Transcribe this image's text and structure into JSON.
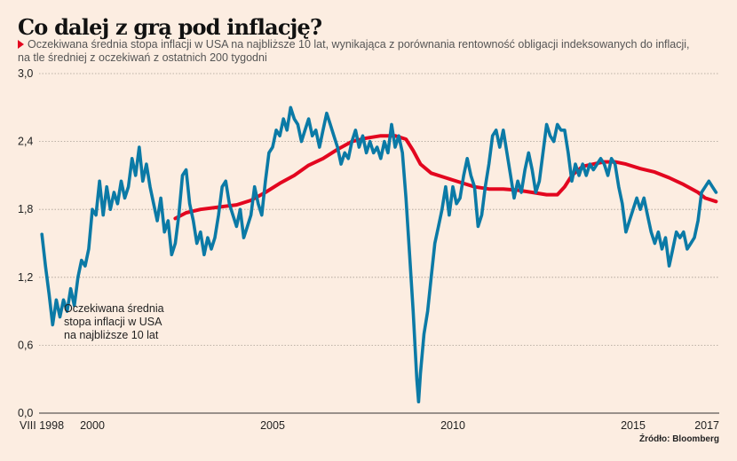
{
  "title": "Co dalej z grą pod inflację?",
  "subtitle_line1": "Oczekiwana średnia stopa inflacji w USA na najbliższe 10 lat, wynikająca z porównania rentowność obligacji indeksowanych do inflacji,",
  "subtitle_line2": "na tle średniej z oczekiwań z ostatnich 200 tygodni",
  "source": "Źródło: Bloomberg",
  "colors": {
    "background": "#fcede1",
    "expected_inflation": "#0b7aa6",
    "average_200w": "#e3061f",
    "bullet": "#e3061f"
  },
  "chart_data": {
    "type": "line",
    "title": "Co dalej z grą pod inflację?",
    "xlabel": "",
    "ylabel": "",
    "ylim": [
      0,
      3.0
    ],
    "xlim": [
      1998.6,
      2017.4
    ],
    "grid": true,
    "yticks": [
      {
        "value": 0.0,
        "label": "0,0"
      },
      {
        "value": 0.6,
        "label": "0,6"
      },
      {
        "value": 1.2,
        "label": "1,2"
      },
      {
        "value": 1.8,
        "label": "1,8"
      },
      {
        "value": 2.4,
        "label": "2,4"
      },
      {
        "value": 3.0,
        "label": "3,0"
      }
    ],
    "xticks": [
      {
        "value": 1998.6,
        "label": "VIII 1998"
      },
      {
        "value": 2000,
        "label": "2000"
      },
      {
        "value": 2005,
        "label": "2005"
      },
      {
        "value": 2010,
        "label": "2010"
      },
      {
        "value": 2015,
        "label": "2015"
      },
      {
        "value": 2017,
        "label": "2017"
      }
    ],
    "annotation": {
      "lines": [
        "Oczekiwana średnia",
        "stopa inflacji w USA",
        "na najbliższe 10 lat"
      ],
      "x": 1999.2,
      "y": 0.95
    },
    "series": [
      {
        "name": "Oczekiwana średnia stopa inflacji w USA na najbliższe 10 lat",
        "color": "#0b7aa6",
        "points": [
          [
            1998.6,
            1.58
          ],
          [
            1998.7,
            1.3
          ],
          [
            1998.8,
            1.05
          ],
          [
            1998.9,
            0.78
          ],
          [
            1999.0,
            1.0
          ],
          [
            1999.1,
            0.85
          ],
          [
            1999.2,
            1.0
          ],
          [
            1999.3,
            0.9
          ],
          [
            1999.4,
            1.1
          ],
          [
            1999.5,
            0.95
          ],
          [
            1999.6,
            1.2
          ],
          [
            1999.7,
            1.35
          ],
          [
            1999.8,
            1.3
          ],
          [
            1999.9,
            1.45
          ],
          [
            2000.0,
            1.8
          ],
          [
            2000.1,
            1.75
          ],
          [
            2000.2,
            2.05
          ],
          [
            2000.3,
            1.75
          ],
          [
            2000.4,
            2.0
          ],
          [
            2000.5,
            1.8
          ],
          [
            2000.6,
            1.95
          ],
          [
            2000.7,
            1.85
          ],
          [
            2000.8,
            2.05
          ],
          [
            2000.9,
            1.9
          ],
          [
            2001.0,
            2.0
          ],
          [
            2001.1,
            2.25
          ],
          [
            2001.2,
            2.1
          ],
          [
            2001.3,
            2.35
          ],
          [
            2001.4,
            2.05
          ],
          [
            2001.5,
            2.2
          ],
          [
            2001.6,
            2.0
          ],
          [
            2001.7,
            1.85
          ],
          [
            2001.8,
            1.7
          ],
          [
            2001.9,
            1.9
          ],
          [
            2002.0,
            1.6
          ],
          [
            2002.1,
            1.7
          ],
          [
            2002.2,
            1.4
          ],
          [
            2002.3,
            1.5
          ],
          [
            2002.4,
            1.75
          ],
          [
            2002.5,
            2.1
          ],
          [
            2002.6,
            2.15
          ],
          [
            2002.7,
            1.85
          ],
          [
            2002.8,
            1.7
          ],
          [
            2002.9,
            1.5
          ],
          [
            2003.0,
            1.6
          ],
          [
            2003.1,
            1.4
          ],
          [
            2003.2,
            1.55
          ],
          [
            2003.3,
            1.45
          ],
          [
            2003.4,
            1.55
          ],
          [
            2003.5,
            1.75
          ],
          [
            2003.6,
            2.0
          ],
          [
            2003.7,
            2.05
          ],
          [
            2003.8,
            1.85
          ],
          [
            2003.9,
            1.75
          ],
          [
            2004.0,
            1.65
          ],
          [
            2004.1,
            1.8
          ],
          [
            2004.2,
            1.55
          ],
          [
            2004.3,
            1.65
          ],
          [
            2004.4,
            1.75
          ],
          [
            2004.5,
            2.0
          ],
          [
            2004.6,
            1.85
          ],
          [
            2004.7,
            1.75
          ],
          [
            2004.8,
            2.05
          ],
          [
            2004.9,
            2.3
          ],
          [
            2005.0,
            2.35
          ],
          [
            2005.1,
            2.5
          ],
          [
            2005.2,
            2.45
          ],
          [
            2005.3,
            2.6
          ],
          [
            2005.4,
            2.5
          ],
          [
            2005.5,
            2.7
          ],
          [
            2005.6,
            2.6
          ],
          [
            2005.7,
            2.55
          ],
          [
            2005.8,
            2.4
          ],
          [
            2005.9,
            2.5
          ],
          [
            2006.0,
            2.6
          ],
          [
            2006.1,
            2.45
          ],
          [
            2006.2,
            2.5
          ],
          [
            2006.3,
            2.35
          ],
          [
            2006.4,
            2.5
          ],
          [
            2006.5,
            2.65
          ],
          [
            2006.6,
            2.55
          ],
          [
            2006.7,
            2.45
          ],
          [
            2006.8,
            2.35
          ],
          [
            2006.9,
            2.2
          ],
          [
            2007.0,
            2.3
          ],
          [
            2007.1,
            2.25
          ],
          [
            2007.2,
            2.4
          ],
          [
            2007.3,
            2.5
          ],
          [
            2007.4,
            2.35
          ],
          [
            2007.5,
            2.45
          ],
          [
            2007.6,
            2.3
          ],
          [
            2007.7,
            2.4
          ],
          [
            2007.8,
            2.3
          ],
          [
            2007.9,
            2.35
          ],
          [
            2008.0,
            2.25
          ],
          [
            2008.1,
            2.4
          ],
          [
            2008.2,
            2.3
          ],
          [
            2008.3,
            2.55
          ],
          [
            2008.4,
            2.35
          ],
          [
            2008.5,
            2.45
          ],
          [
            2008.6,
            2.3
          ],
          [
            2008.7,
            1.9
          ],
          [
            2008.8,
            1.4
          ],
          [
            2008.9,
            0.9
          ],
          [
            2009.0,
            0.3
          ],
          [
            2009.05,
            0.1
          ],
          [
            2009.1,
            0.35
          ],
          [
            2009.2,
            0.7
          ],
          [
            2009.3,
            0.9
          ],
          [
            2009.4,
            1.2
          ],
          [
            2009.5,
            1.5
          ],
          [
            2009.6,
            1.65
          ],
          [
            2009.7,
            1.8
          ],
          [
            2009.8,
            2.0
          ],
          [
            2009.9,
            1.75
          ],
          [
            2010.0,
            2.0
          ],
          [
            2010.1,
            1.85
          ],
          [
            2010.2,
            1.9
          ],
          [
            2010.3,
            2.1
          ],
          [
            2010.4,
            2.25
          ],
          [
            2010.5,
            2.1
          ],
          [
            2010.6,
            2.0
          ],
          [
            2010.7,
            1.65
          ],
          [
            2010.8,
            1.75
          ],
          [
            2010.9,
            2.0
          ],
          [
            2011.0,
            2.2
          ],
          [
            2011.1,
            2.45
          ],
          [
            2011.2,
            2.5
          ],
          [
            2011.3,
            2.35
          ],
          [
            2011.4,
            2.5
          ],
          [
            2011.5,
            2.3
          ],
          [
            2011.6,
            2.1
          ],
          [
            2011.7,
            1.9
          ],
          [
            2011.8,
            2.05
          ],
          [
            2011.9,
            1.95
          ],
          [
            2012.0,
            2.15
          ],
          [
            2012.1,
            2.3
          ],
          [
            2012.2,
            2.15
          ],
          [
            2012.3,
            1.95
          ],
          [
            2012.4,
            2.05
          ],
          [
            2012.5,
            2.3
          ],
          [
            2012.6,
            2.55
          ],
          [
            2012.7,
            2.45
          ],
          [
            2012.8,
            2.4
          ],
          [
            2012.9,
            2.55
          ],
          [
            2013.0,
            2.5
          ],
          [
            2013.1,
            2.5
          ],
          [
            2013.2,
            2.3
          ],
          [
            2013.3,
            2.05
          ],
          [
            2013.4,
            2.2
          ],
          [
            2013.5,
            2.1
          ],
          [
            2013.6,
            2.2
          ],
          [
            2013.7,
            2.1
          ],
          [
            2013.8,
            2.2
          ],
          [
            2013.9,
            2.15
          ],
          [
            2014.0,
            2.2
          ],
          [
            2014.1,
            2.25
          ],
          [
            2014.2,
            2.2
          ],
          [
            2014.3,
            2.1
          ],
          [
            2014.4,
            2.25
          ],
          [
            2014.5,
            2.2
          ],
          [
            2014.6,
            2.0
          ],
          [
            2014.7,
            1.85
          ],
          [
            2014.8,
            1.6
          ],
          [
            2014.9,
            1.7
          ],
          [
            2015.0,
            1.8
          ],
          [
            2015.1,
            1.9
          ],
          [
            2015.2,
            1.8
          ],
          [
            2015.3,
            1.9
          ],
          [
            2015.4,
            1.75
          ],
          [
            2015.5,
            1.6
          ],
          [
            2015.6,
            1.5
          ],
          [
            2015.7,
            1.6
          ],
          [
            2015.8,
            1.45
          ],
          [
            2015.9,
            1.55
          ],
          [
            2016.0,
            1.3
          ],
          [
            2016.1,
            1.45
          ],
          [
            2016.2,
            1.6
          ],
          [
            2016.3,
            1.55
          ],
          [
            2016.4,
            1.6
          ],
          [
            2016.5,
            1.45
          ],
          [
            2016.6,
            1.5
          ],
          [
            2016.7,
            1.55
          ],
          [
            2016.8,
            1.7
          ],
          [
            2016.9,
            1.95
          ],
          [
            2017.0,
            2.0
          ],
          [
            2017.1,
            2.05
          ],
          [
            2017.2,
            2.0
          ],
          [
            2017.3,
            1.95
          ]
        ]
      },
      {
        "name": "Średnia z oczekiwań z ostatnich 200 tygodni",
        "color": "#e3061f",
        "points": [
          [
            2002.3,
            1.72
          ],
          [
            2002.6,
            1.77
          ],
          [
            2003.0,
            1.8
          ],
          [
            2003.5,
            1.82
          ],
          [
            2004.0,
            1.84
          ],
          [
            2004.4,
            1.88
          ],
          [
            2004.8,
            1.95
          ],
          [
            2005.2,
            2.03
          ],
          [
            2005.6,
            2.1
          ],
          [
            2006.0,
            2.19
          ],
          [
            2006.4,
            2.25
          ],
          [
            2006.8,
            2.33
          ],
          [
            2007.2,
            2.4
          ],
          [
            2007.6,
            2.43
          ],
          [
            2008.0,
            2.45
          ],
          [
            2008.4,
            2.45
          ],
          [
            2008.7,
            2.42
          ],
          [
            2008.9,
            2.32
          ],
          [
            2009.1,
            2.2
          ],
          [
            2009.4,
            2.12
          ],
          [
            2009.8,
            2.08
          ],
          [
            2010.2,
            2.04
          ],
          [
            2010.6,
            2.0
          ],
          [
            2011.0,
            1.98
          ],
          [
            2011.4,
            1.98
          ],
          [
            2011.8,
            1.97
          ],
          [
            2012.2,
            1.95
          ],
          [
            2012.6,
            1.93
          ],
          [
            2012.9,
            1.93
          ],
          [
            2013.1,
            2.0
          ],
          [
            2013.3,
            2.1
          ],
          [
            2013.6,
            2.18
          ],
          [
            2013.9,
            2.2
          ],
          [
            2014.2,
            2.22
          ],
          [
            2014.5,
            2.22
          ],
          [
            2014.8,
            2.2
          ],
          [
            2015.2,
            2.16
          ],
          [
            2015.6,
            2.13
          ],
          [
            2016.0,
            2.08
          ],
          [
            2016.4,
            2.02
          ],
          [
            2016.8,
            1.95
          ],
          [
            2017.0,
            1.9
          ],
          [
            2017.3,
            1.87
          ]
        ]
      }
    ]
  }
}
